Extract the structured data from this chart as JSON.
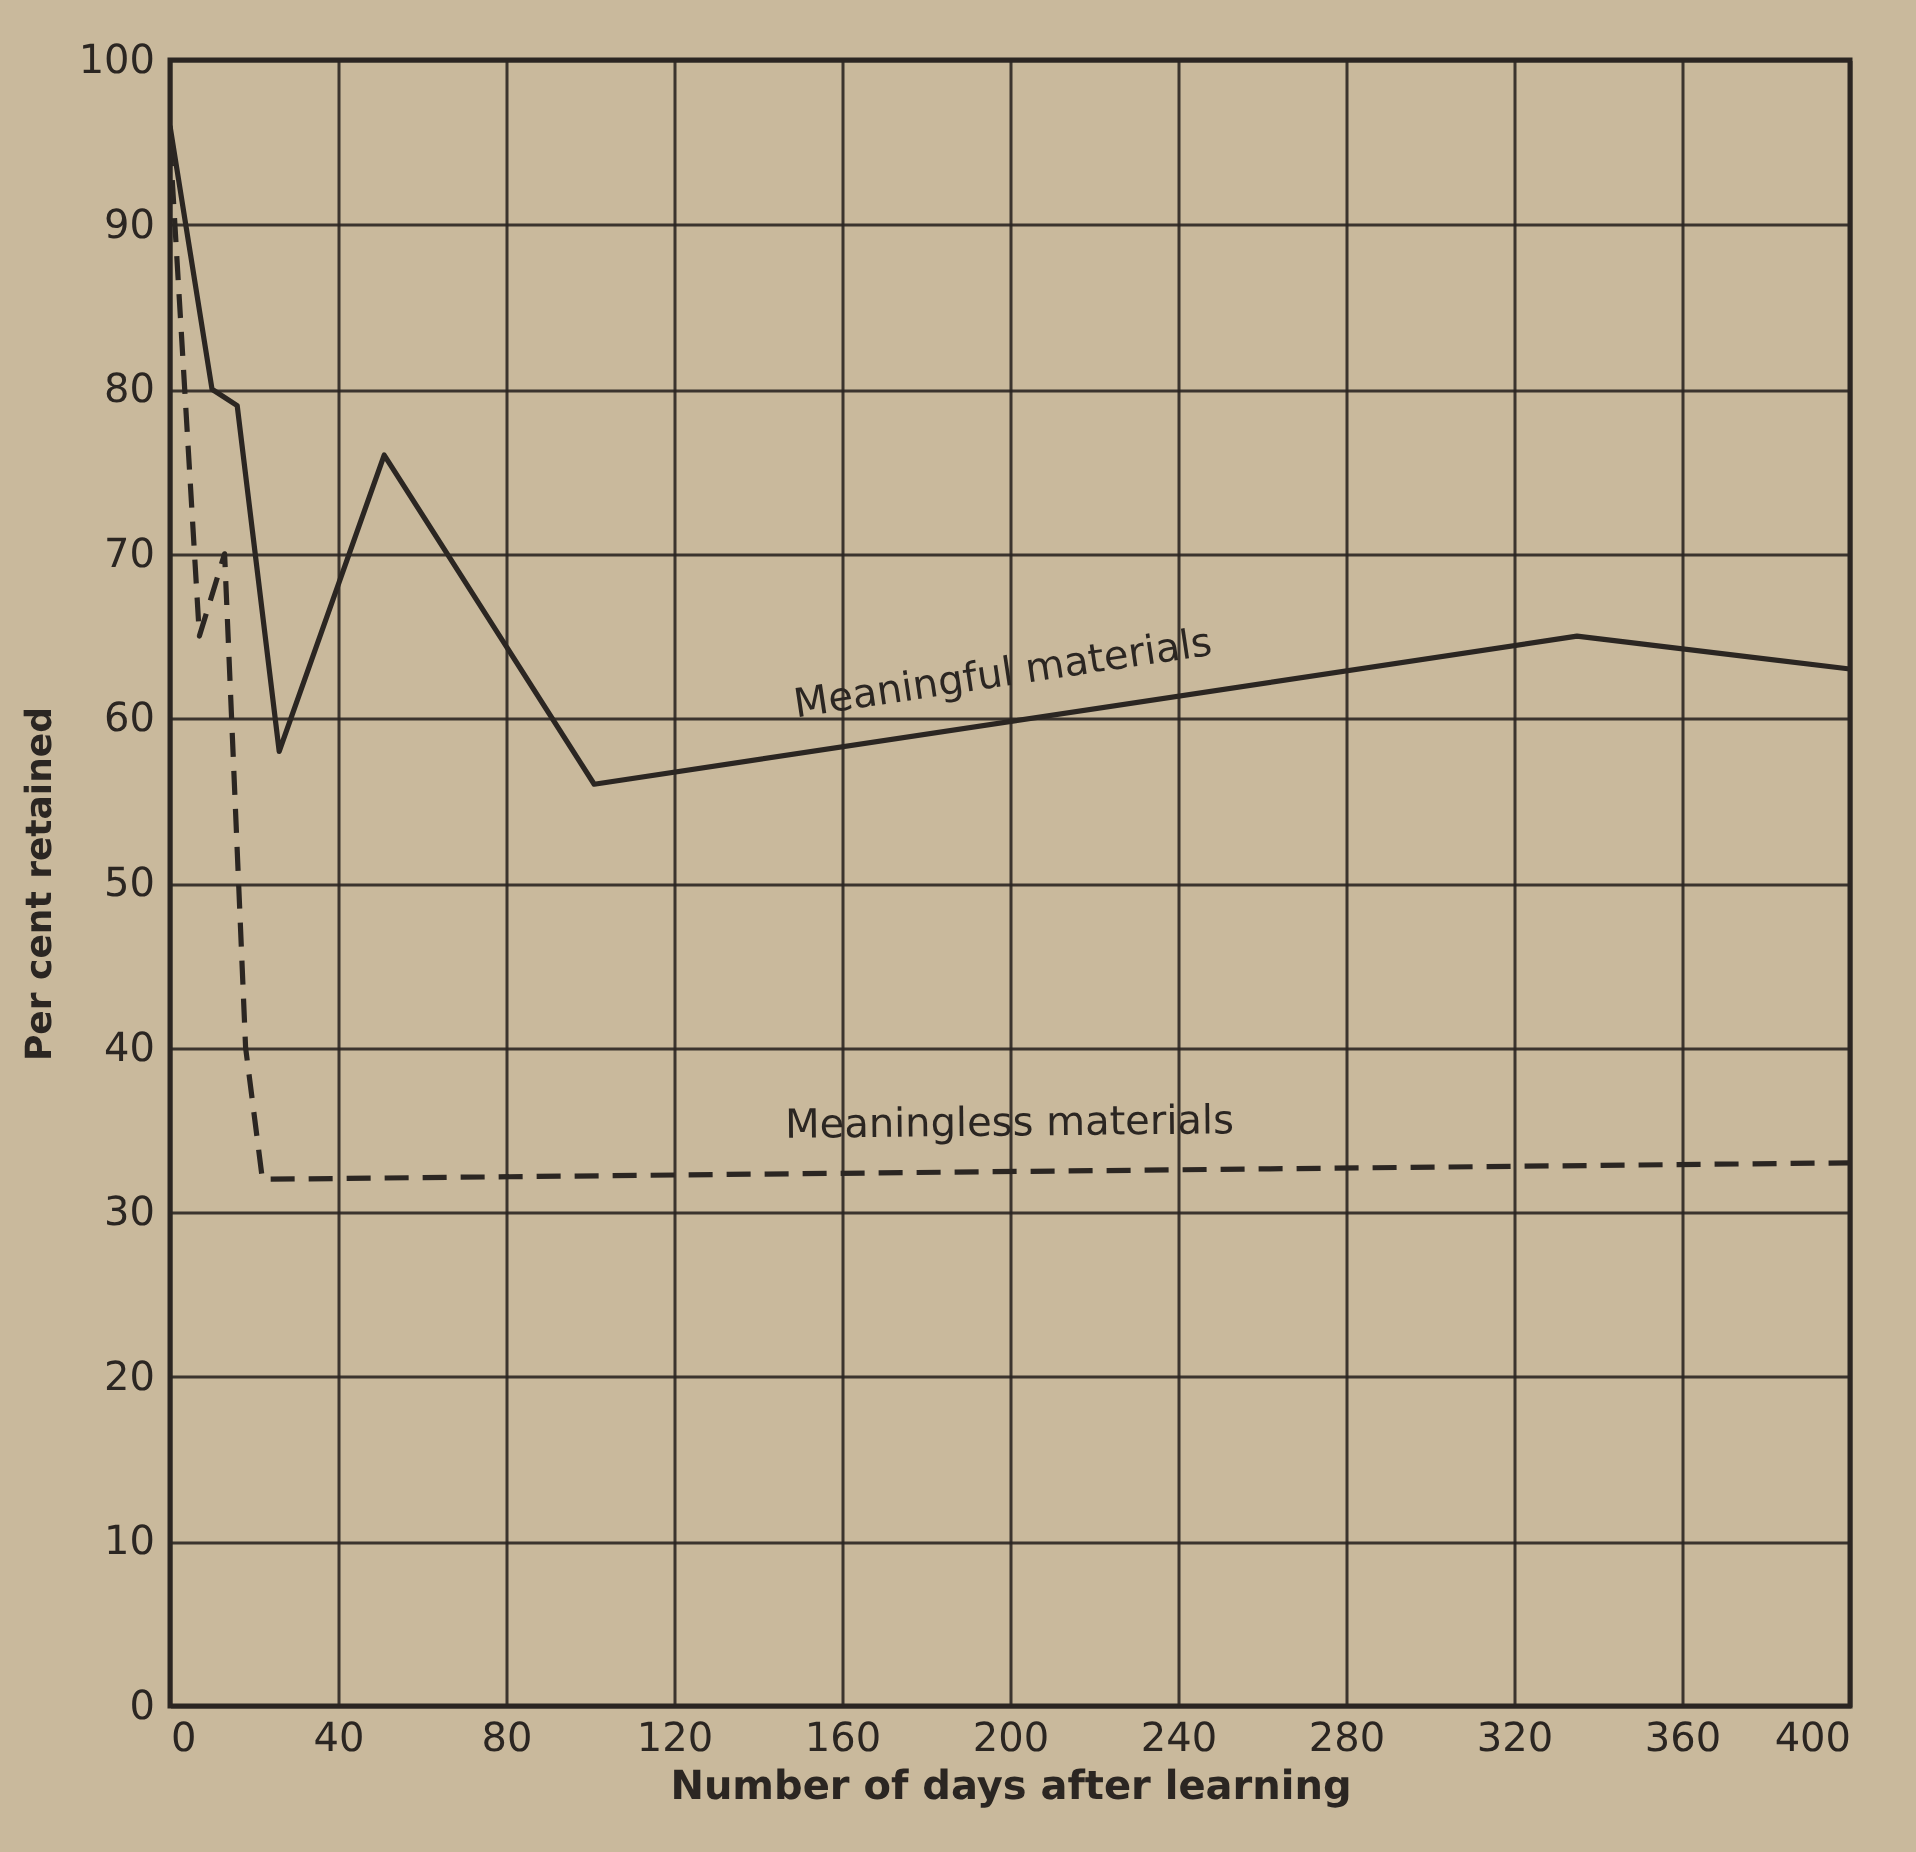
{
  "chart_data": {
    "type": "line",
    "xlabel": "Number of days after learning",
    "ylabel": "Per cent retained",
    "xlim": [
      0,
      400
    ],
    "xticks": [
      0,
      40,
      80,
      120,
      160,
      200,
      240,
      280,
      320,
      360,
      400
    ],
    "ylim": [
      0,
      100
    ],
    "yticks": [
      0,
      10,
      20,
      30,
      40,
      50,
      60,
      70,
      80,
      90,
      100
    ],
    "grid": true,
    "series": [
      {
        "name": "Meaningful materials",
        "color": "#2b2622",
        "line_style": "solid",
        "x": [
          0,
          10,
          16,
          26,
          51,
          101,
          335,
          400
        ],
        "values": [
          96,
          80,
          79,
          58,
          76,
          56,
          65,
          63
        ]
      },
      {
        "name": "Meaningless materials",
        "color": "#2b2622",
        "line_style": "dashed",
        "x": [
          0,
          7,
          13,
          18,
          22,
          400
        ],
        "values": [
          95,
          65,
          70,
          40,
          32,
          33
        ]
      }
    ]
  }
}
